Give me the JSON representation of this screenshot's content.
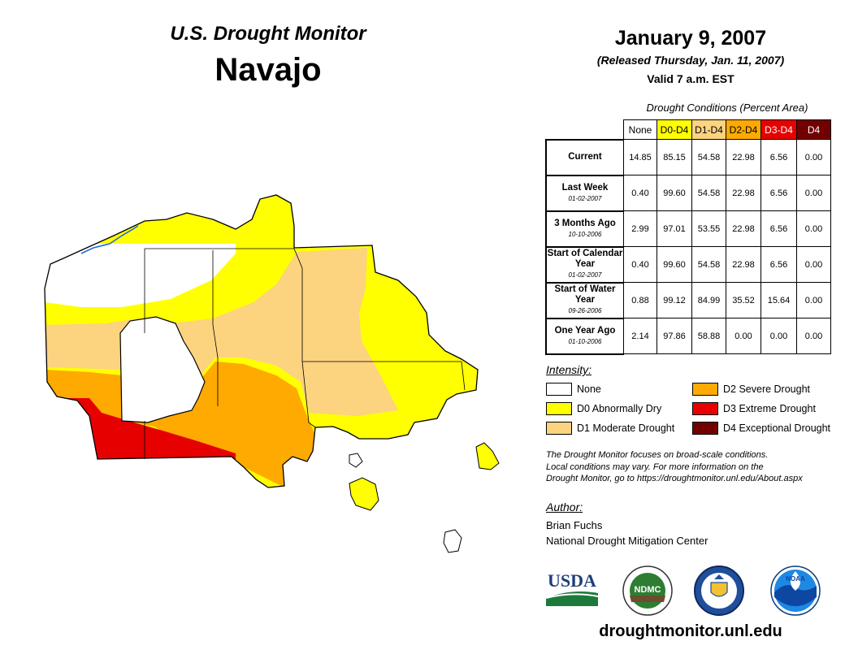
{
  "header": {
    "monitor_title": "U.S. Drought Monitor",
    "region": "Navajo",
    "date": "January 9, 2007",
    "released": "(Released Thursday, Jan. 11, 2007)",
    "valid": "Valid 7 a.m. EST"
  },
  "table": {
    "caption": "Drought Conditions (Percent Area)",
    "columns": [
      "None",
      "D0-D4",
      "D1-D4",
      "D2-D4",
      "D3-D4",
      "D4"
    ],
    "column_colors": [
      "#ffffff",
      "#ffff00",
      "#fcd37f",
      "#ffaa00",
      "#e60000",
      "#730000"
    ],
    "rows": [
      {
        "label": "Current",
        "date": "",
        "values": [
          "14.85",
          "85.15",
          "54.58",
          "22.98",
          "6.56",
          "0.00"
        ]
      },
      {
        "label": "Last Week",
        "date": "01-02-2007",
        "values": [
          "0.40",
          "99.60",
          "54.58",
          "22.98",
          "6.56",
          "0.00"
        ]
      },
      {
        "label": "3 Months Ago",
        "date": "10-10-2006",
        "values": [
          "2.99",
          "97.01",
          "53.55",
          "22.98",
          "6.56",
          "0.00"
        ]
      },
      {
        "label": "Start of Calendar Year",
        "date": "01-02-2007",
        "values": [
          "0.40",
          "99.60",
          "54.58",
          "22.98",
          "6.56",
          "0.00"
        ]
      },
      {
        "label": "Start of Water Year",
        "date": "09-26-2006",
        "values": [
          "0.88",
          "99.12",
          "84.99",
          "35.52",
          "15.64",
          "0.00"
        ]
      },
      {
        "label": "One Year Ago",
        "date": "01-10-2006",
        "values": [
          "2.14",
          "97.86",
          "58.88",
          "0.00",
          "0.00",
          "0.00"
        ]
      }
    ]
  },
  "legend": {
    "title": "Intensity:",
    "items": [
      {
        "label": "None",
        "color": "#ffffff"
      },
      {
        "label": "D0 Abnormally Dry",
        "color": "#ffff00"
      },
      {
        "label": "D1 Moderate Drought",
        "color": "#fcd37f"
      },
      {
        "label": "D2 Severe Drought",
        "color": "#ffaa00"
      },
      {
        "label": "D3 Extreme Drought",
        "color": "#e60000"
      },
      {
        "label": "D4 Exceptional Drought",
        "color": "#730000"
      }
    ]
  },
  "note": {
    "line1": "The Drought Monitor focuses on broad-scale conditions.",
    "line2": "Local conditions may vary. For more information on the",
    "line3": "Drought Monitor, go to https://droughtmonitor.unl.edu/About.aspx"
  },
  "author": {
    "title": "Author:",
    "name": "Brian Fuchs",
    "org": "National Drought Mitigation Center"
  },
  "logos": {
    "usda": "USDA",
    "ndmc": "NDMC",
    "noaa": "NOAA"
  },
  "footer": {
    "url": "droughtmonitor.unl.edu"
  },
  "colors": {
    "none": "#ffffff",
    "d0": "#ffff00",
    "d1": "#fcd37f",
    "d2": "#ffaa00",
    "d3": "#e60000",
    "water": "#1e6fd9"
  }
}
